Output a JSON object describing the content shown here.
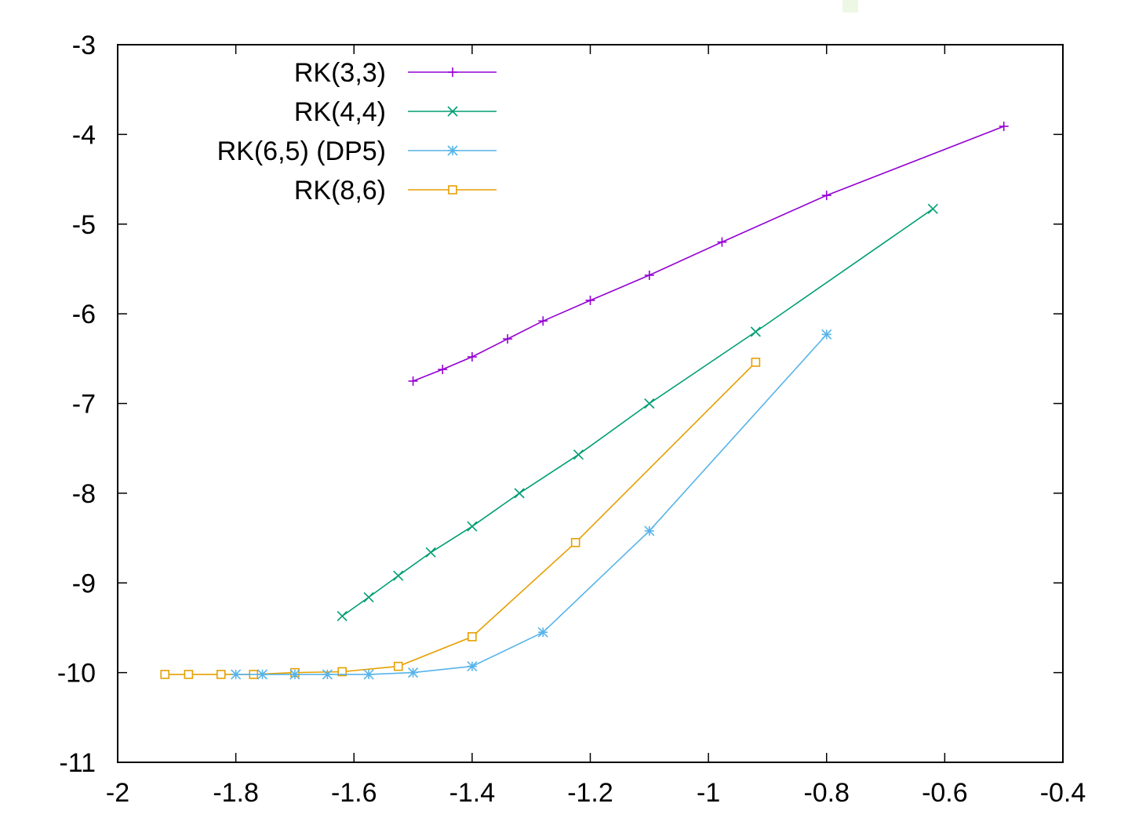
{
  "chart_data": {
    "type": "line",
    "title": "",
    "xlabel": "",
    "ylabel": "",
    "xlim": [
      -2,
      -0.4
    ],
    "ylim": [
      -11,
      -3
    ],
    "grid": false,
    "legend_position": "top-left",
    "x_ticks": [
      "-2",
      "-1.8",
      "-1.6",
      "-1.4",
      "-1.2",
      "-1",
      "-0.8",
      "-0.6",
      "-0.4"
    ],
    "y_ticks": [
      "-3",
      "-4",
      "-5",
      "-6",
      "-7",
      "-8",
      "-9",
      "-10",
      "-11"
    ],
    "x_tick_values": [
      -2,
      -1.8,
      -1.6,
      -1.4,
      -1.2,
      -1,
      -0.8,
      -0.6,
      -0.4
    ],
    "y_tick_values": [
      -3,
      -4,
      -5,
      -6,
      -7,
      -8,
      -9,
      -10,
      -11
    ],
    "series": [
      {
        "name": "RK(3,3)",
        "color": "#9400d3",
        "marker": "plus",
        "x": [
          -1.5,
          -1.45,
          -1.4,
          -1.34,
          -1.28,
          -1.2,
          -1.1,
          -0.977,
          -0.8,
          -0.5
        ],
        "y": [
          -6.75,
          -6.62,
          -6.48,
          -6.28,
          -6.08,
          -5.85,
          -5.57,
          -5.2,
          -4.68,
          -3.91
        ]
      },
      {
        "name": "RK(4,4)",
        "color": "#009e73",
        "marker": "cross",
        "x": [
          -1.62,
          -1.575,
          -1.525,
          -1.47,
          -1.4,
          -1.32,
          -1.22,
          -1.1,
          -0.92,
          -0.62
        ],
        "y": [
          -9.37,
          -9.16,
          -8.92,
          -8.66,
          -8.37,
          -8.0,
          -7.57,
          -7.0,
          -6.2,
          -4.83
        ]
      },
      {
        "name": "RK(6,5) (DP5)",
        "color": "#56b4e9",
        "marker": "star",
        "x": [
          -1.8,
          -1.755,
          -1.7,
          -1.645,
          -1.575,
          -1.5,
          -1.4,
          -1.28,
          -1.1,
          -0.8
        ],
        "y": [
          -10.02,
          -10.02,
          -10.02,
          -10.02,
          -10.02,
          -10.0,
          -9.93,
          -9.55,
          -8.42,
          -6.23
        ]
      },
      {
        "name": "RK(8,6)",
        "color": "#e69f00",
        "marker": "square",
        "x": [
          -1.92,
          -1.88,
          -1.825,
          -1.77,
          -1.7,
          -1.62,
          -1.525,
          -1.4,
          -1.225,
          -0.92
        ],
        "y": [
          -10.02,
          -10.02,
          -10.02,
          -10.02,
          -10.0,
          -9.99,
          -9.93,
          -9.6,
          -8.55,
          -6.54
        ]
      }
    ]
  }
}
